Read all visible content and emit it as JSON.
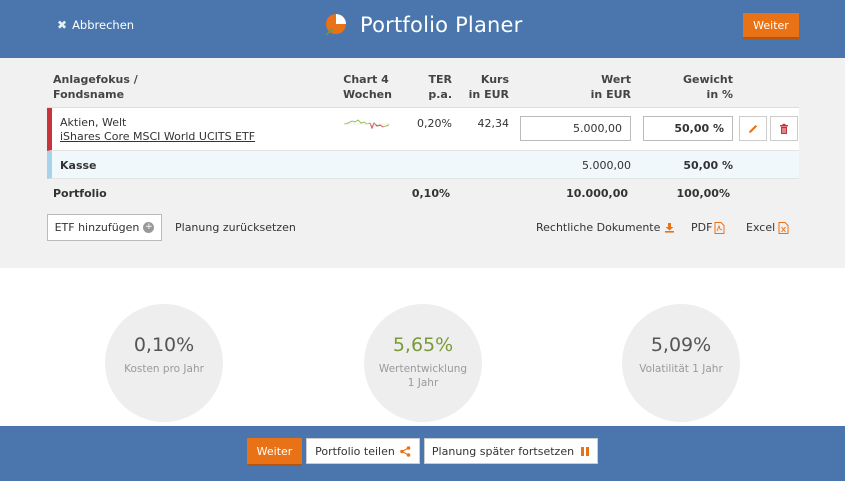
{
  "header": {
    "cancel_label": "Abbrechen",
    "title": "Portfolio Planer",
    "next_label": "Weiter"
  },
  "table": {
    "columns": {
      "fund": [
        "Anlagefokus /",
        "Fondsname"
      ],
      "chart": [
        "Chart 4",
        "Wochen"
      ],
      "ter": [
        "TER",
        "p.a."
      ],
      "price": [
        "Kurs",
        "in EUR"
      ],
      "value": [
        "Wert",
        "in EUR"
      ],
      "weight": [
        "Gewicht",
        "in %"
      ]
    },
    "rows": [
      {
        "focus": "Aktien, Welt",
        "fund_name": "iShares Core MSCI World UCITS ETF",
        "ter": "0,20%",
        "price": "42,34",
        "value": "5.000,00",
        "weight": "50,00 %"
      }
    ],
    "cash": {
      "label": "Kasse",
      "value": "5.000,00",
      "weight": "50,00 %"
    },
    "total": {
      "label": "Portfolio",
      "ter": "0,10%",
      "value": "10.000,00",
      "weight": "100,00%"
    }
  },
  "actions": {
    "add_etf": "ETF hinzufügen",
    "reset": "Planung zurücksetzen",
    "legal_docs": "Rechtliche Dokumente",
    "pdf": "PDF",
    "excel": "Excel"
  },
  "stats": [
    {
      "value": "0,10%",
      "label": "Kosten pro Jahr"
    },
    {
      "value": "5,65%",
      "label": "Wertentwicklung",
      "label2": "1 Jahr"
    },
    {
      "value": "5,09%",
      "label": "Volatilität 1 Jahr"
    }
  ],
  "footer": {
    "next_label": "Weiter",
    "share_label": "Portfolio teilen",
    "later_label": "Planung später fortsetzen"
  },
  "colors": {
    "brand_blue": "#4a76ad",
    "accent_orange": "#ea7216",
    "row_marker_red": "#c9333b",
    "cash_marker_blue": "#a6d2ea",
    "positive_green": "#7a9a3a"
  }
}
